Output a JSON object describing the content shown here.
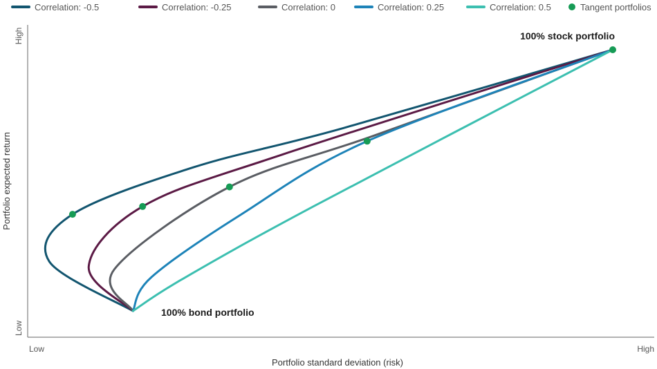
{
  "chart_data": {
    "type": "line",
    "title": "",
    "xlabel": "Portfolio standard deviation (risk)",
    "ylabel": "Portfolio expected return",
    "x_ticks": [
      "Low",
      "High"
    ],
    "y_ticks": [
      "Low",
      "High"
    ],
    "xlim": [
      0,
      1
    ],
    "ylim": [
      0,
      1
    ],
    "grid": false,
    "legend_position": "top",
    "series": [
      {
        "name": "Correlation: -0.5",
        "color": "#12556f",
        "points": [
          [
            0.199,
            0.0
          ],
          [
            0.059,
            0.19
          ],
          [
            0.098,
            0.37
          ],
          [
            0.3,
            0.55
          ],
          [
            0.55,
            0.7
          ],
          [
            1.0,
            1.0
          ]
        ]
      },
      {
        "name": "Correlation: -0.25",
        "color": "#5b1a45",
        "points": [
          [
            0.199,
            0.0
          ],
          [
            0.125,
            0.17
          ],
          [
            0.215,
            0.4
          ],
          [
            0.45,
            0.6
          ],
          [
            1.0,
            1.0
          ]
        ]
      },
      {
        "name": "Correlation: 0",
        "color": "#5a5d63",
        "points": [
          [
            0.199,
            0.0
          ],
          [
            0.168,
            0.16
          ],
          [
            0.36,
            0.475
          ],
          [
            0.6,
            0.67
          ],
          [
            1.0,
            1.0
          ]
        ]
      },
      {
        "name": "Correlation: 0.25",
        "color": "#1d83b8",
        "points": [
          [
            0.199,
            0.0
          ],
          [
            0.23,
            0.13
          ],
          [
            0.38,
            0.37
          ],
          [
            0.59,
            0.65
          ],
          [
            1.0,
            1.0
          ]
        ]
      },
      {
        "name": "Correlation: 0.5",
        "color": "#3cbfb0",
        "points": [
          [
            0.199,
            0.0
          ],
          [
            0.28,
            0.12
          ],
          [
            0.5,
            0.4
          ],
          [
            1.0,
            1.0
          ]
        ]
      }
    ],
    "tangent_portfolios": {
      "name": "Tangent portfolios",
      "color": "#169b55",
      "points": [
        [
          0.098,
          0.37
        ],
        [
          0.215,
          0.4
        ],
        [
          0.36,
          0.475
        ],
        [
          0.59,
          0.65
        ],
        [
          1.0,
          1.0
        ]
      ]
    },
    "annotations": [
      "100% bond portfolio",
      "100% stock portfolio"
    ]
  }
}
